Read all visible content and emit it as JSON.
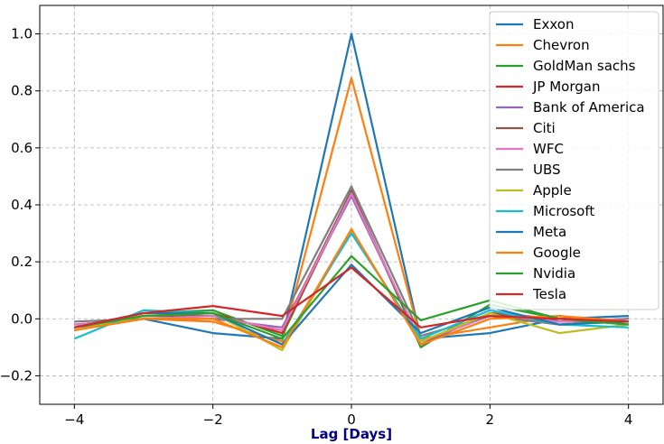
{
  "chart_data": {
    "type": "line",
    "x": [
      -4,
      -3,
      -2,
      -1,
      0,
      1,
      2,
      3,
      4
    ],
    "xlim": [
      -4.5,
      4.5
    ],
    "ylim": [
      -0.3,
      1.1
    ],
    "xticks": [
      -4,
      -2,
      0,
      2,
      4
    ],
    "yticks": [
      -0.2,
      0.0,
      0.2,
      0.4,
      0.6,
      0.8,
      1.0
    ],
    "xlabel": "Lag [Days]",
    "ylabel": "",
    "title": "",
    "grid": true,
    "legend_position": "top-right",
    "series": [
      {
        "name": "Exxon",
        "color": "#1f77b4",
        "values": [
          -0.03,
          0.0,
          -0.05,
          -0.07,
          1.0,
          -0.07,
          -0.05,
          0.0,
          0.01
        ]
      },
      {
        "name": "Chevron",
        "color": "#ff7f0e",
        "values": [
          -0.04,
          0.0,
          -0.01,
          -0.08,
          0.845,
          -0.07,
          -0.03,
          0.01,
          -0.02
        ]
      },
      {
        "name": "GoldMan sachs",
        "color": "#2ca02c",
        "values": [
          -0.03,
          0.02,
          0.03,
          -0.06,
          0.45,
          -0.1,
          0.05,
          0.0,
          -0.02
        ]
      },
      {
        "name": "JP Morgan",
        "color": "#d62728",
        "values": [
          -0.03,
          0.01,
          0.02,
          -0.05,
          0.44,
          -0.09,
          0.02,
          0.0,
          -0.01
        ]
      },
      {
        "name": "Bank of America",
        "color": "#9467bd",
        "values": [
          -0.02,
          0.0,
          0.0,
          -0.03,
          0.43,
          -0.08,
          0.01,
          -0.01,
          0.0
        ]
      },
      {
        "name": "Citi",
        "color": "#8c564b",
        "values": [
          -0.03,
          0.01,
          0.01,
          -0.04,
          0.45,
          -0.09,
          0.02,
          -0.01,
          0.0
        ]
      },
      {
        "name": "WFC",
        "color": "#e377c2",
        "values": [
          -0.02,
          0.0,
          0.01,
          -0.04,
          0.44,
          -0.08,
          0.01,
          -0.01,
          0.0
        ]
      },
      {
        "name": "UBS",
        "color": "#7f7f7f",
        "values": [
          -0.01,
          0.0,
          0.0,
          0.0,
          0.465,
          -0.06,
          0.01,
          -0.02,
          0.0
        ]
      },
      {
        "name": "Apple",
        "color": "#bcbd22",
        "values": [
          -0.04,
          0.01,
          0.02,
          -0.11,
          0.31,
          -0.08,
          0.02,
          -0.05,
          -0.02
        ]
      },
      {
        "name": "Microsoft",
        "color": "#17becf",
        "values": [
          -0.07,
          0.03,
          0.02,
          -0.09,
          0.3,
          -0.07,
          0.03,
          -0.02,
          -0.03
        ]
      },
      {
        "name": "Meta",
        "color": "#1f77b4",
        "values": [
          -0.03,
          0.02,
          0.02,
          -0.09,
          0.19,
          -0.05,
          0.04,
          -0.02,
          -0.01
        ]
      },
      {
        "name": "Google",
        "color": "#ff7f0e",
        "values": [
          -0.04,
          0.0,
          0.0,
          -0.1,
          0.315,
          -0.09,
          0.0,
          0.01,
          -0.01
        ]
      },
      {
        "name": "Nvidia",
        "color": "#2ca02c",
        "values": [
          -0.03,
          0.01,
          0.02,
          -0.07,
          0.22,
          -0.005,
          0.065,
          0.0,
          -0.02
        ]
      },
      {
        "name": "Tesla",
        "color": "#d62728",
        "values": [
          -0.03,
          0.02,
          0.045,
          0.01,
          0.18,
          -0.03,
          0.01,
          0.0,
          -0.01
        ]
      }
    ]
  }
}
